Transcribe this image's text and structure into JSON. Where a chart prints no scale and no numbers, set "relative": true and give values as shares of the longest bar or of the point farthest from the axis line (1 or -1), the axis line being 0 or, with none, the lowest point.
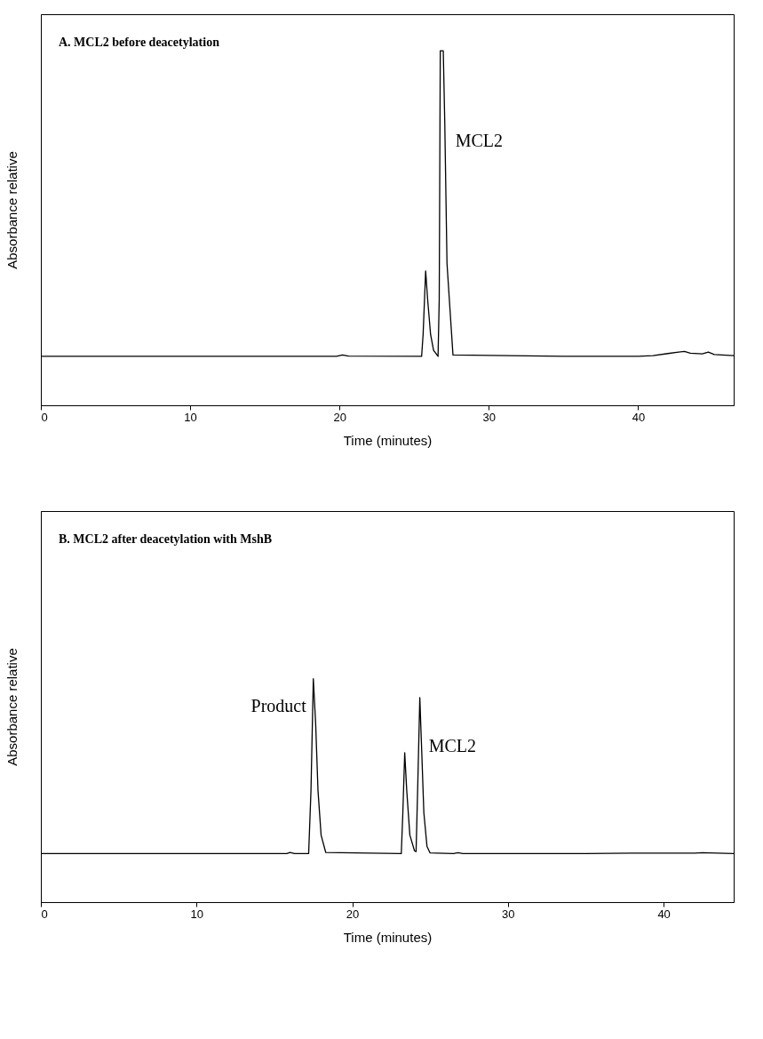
{
  "chart_data": [
    {
      "type": "line",
      "title": "A. MCL2 before deacetylation",
      "xlabel": "Time (minutes)",
      "ylabel": "Absorbance relative",
      "relative": true,
      "xlim": [
        0,
        46.4
      ],
      "xticks": [
        0,
        10,
        20,
        30,
        40
      ],
      "x": [
        0,
        10,
        19.8,
        20.2,
        20.6,
        25.5,
        25.6,
        25.77,
        25.9,
        26.1,
        26.3,
        26.6,
        26.68,
        26.75,
        26.95,
        27.05,
        27.2,
        27.6,
        35,
        40,
        41,
        42,
        43.1,
        43.5,
        44.3,
        44.7,
        45.1,
        46.4
      ],
      "series": [
        {
          "color": "#000000",
          "values": [
            0.138,
            0.138,
            0.138,
            0.142,
            0.139,
            0.138,
            0.2,
            0.379,
            0.3,
            0.2,
            0.155,
            0.138,
            0.3,
            1,
            1,
            0.8,
            0.4,
            0.142,
            0.138,
            0.138,
            0.14,
            0.146,
            0.152,
            0.147,
            0.145,
            0.15,
            0.143,
            0.14
          ]
        }
      ],
      "annotations": [
        {
          "text": "MCL2",
          "x": 27.05,
          "y": 0.8
        }
      ]
    },
    {
      "type": "line",
      "title": "B. MCL2 after deacetylation with MshB",
      "xlabel": "Time (minutes)",
      "ylabel": "Absorbance relative",
      "relative": true,
      "xlim": [
        0,
        44.5
      ],
      "xticks": [
        0,
        10,
        20,
        30,
        40
      ],
      "x": [
        0,
        10,
        15.8,
        16.0,
        16.3,
        17.2,
        17.35,
        17.5,
        17.65,
        17.8,
        18.0,
        18.3,
        23.15,
        23.25,
        23.37,
        23.5,
        23.7,
        24.0,
        24.1,
        24.2,
        24.34,
        24.45,
        24.6,
        24.8,
        25.0,
        26.5,
        26.8,
        27.1,
        35,
        38,
        42,
        42.5,
        44.5
      ],
      "series": [
        {
          "color": "#000000",
          "values": [
            0.217,
            0.217,
            0.217,
            0.222,
            0.217,
            0.217,
            0.5,
            1,
            0.8,
            0.5,
            0.3,
            0.222,
            0.217,
            0.4,
            0.669,
            0.5,
            0.3,
            0.23,
            0.226,
            0.5,
            0.916,
            0.7,
            0.4,
            0.25,
            0.22,
            0.217,
            0.221,
            0.217,
            0.217,
            0.219,
            0.219,
            0.221,
            0.217
          ]
        }
      ],
      "annotations": [
        {
          "text": "Product",
          "x": 17.5,
          "y": 1
        },
        {
          "text": "MCL2",
          "x": 24.34,
          "y": 0.916
        }
      ]
    }
  ]
}
